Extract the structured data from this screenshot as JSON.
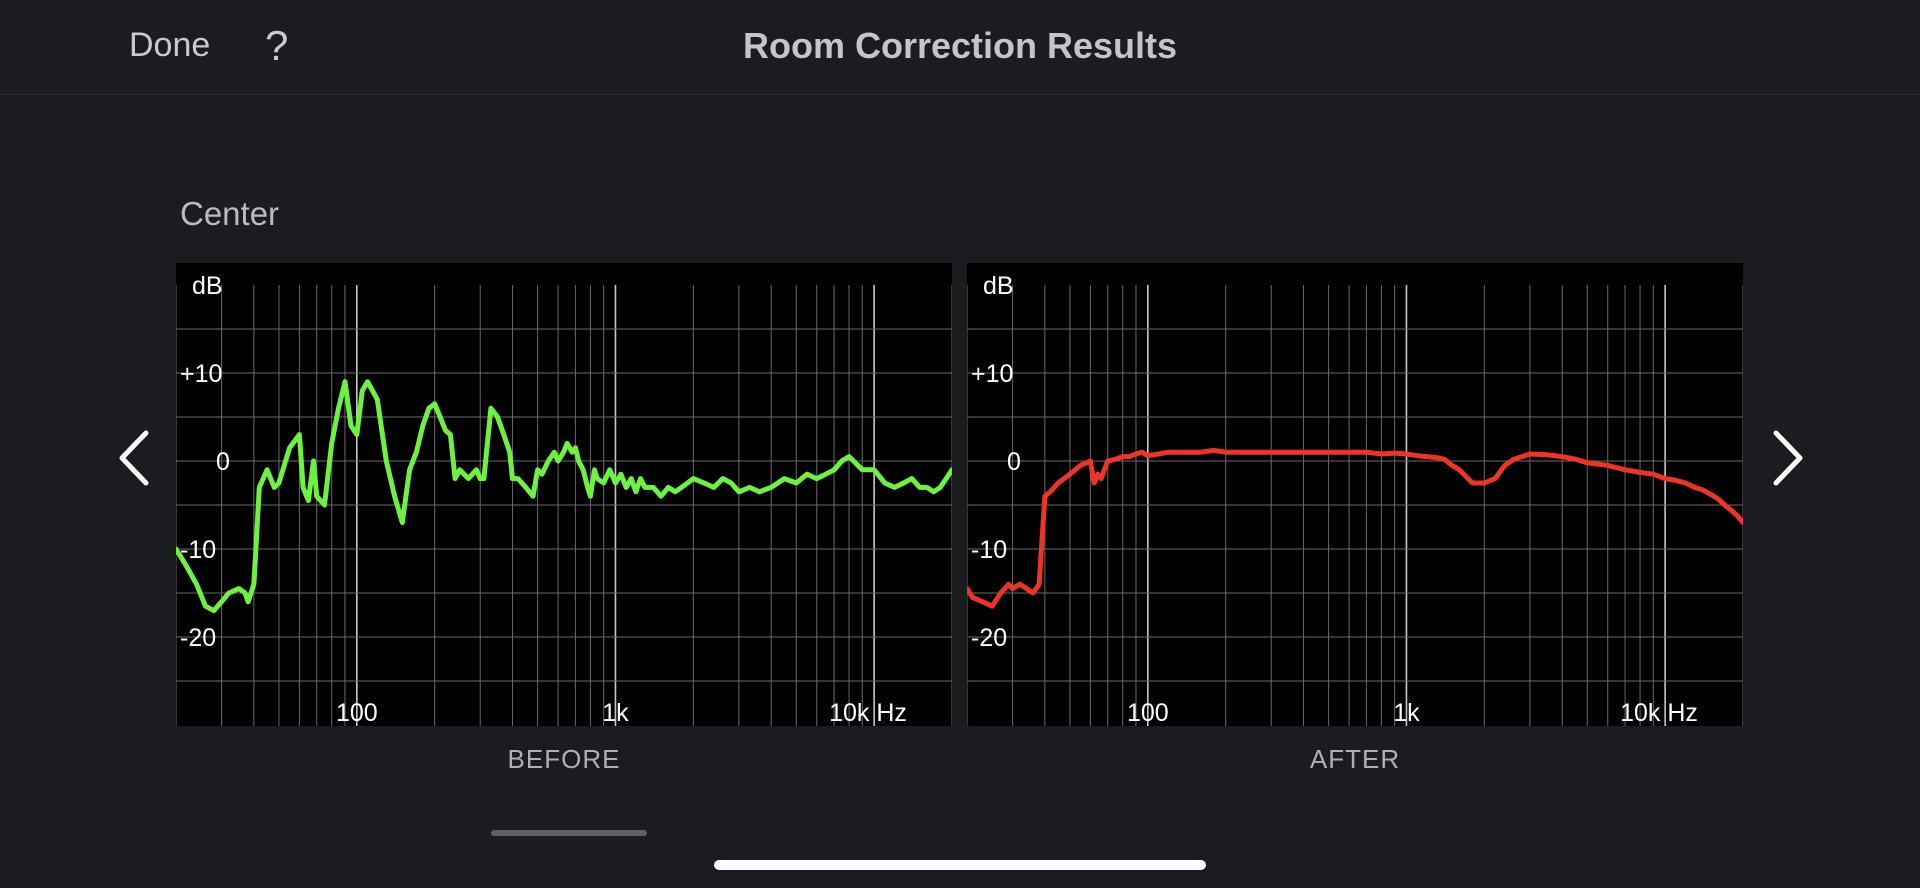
{
  "header": {
    "done_label": "Done",
    "help_label": "?",
    "title": "Room Correction Results"
  },
  "speaker": {
    "name": "Center"
  },
  "chart_data": [
    {
      "type": "line",
      "caption": "BEFORE",
      "ylabel": "dB",
      "ylim": [
        -25,
        15
      ],
      "y_ticks": [
        {
          "v": 10,
          "label": "+10"
        },
        {
          "v": 0,
          "label": "0"
        },
        {
          "v": -10,
          "label": "-10"
        },
        {
          "v": -20,
          "label": "-20"
        }
      ],
      "x_scale": "log",
      "xlim": [
        20,
        20000
      ],
      "x_ticks": [
        {
          "v": 100,
          "label": "100"
        },
        {
          "v": 1000,
          "label": "1k"
        },
        {
          "v": 10000,
          "label": "10k Hz"
        }
      ],
      "grid": true,
      "color": "#6cf23f",
      "series": [
        {
          "x": [
            20,
            22,
            24,
            26,
            28,
            30,
            32,
            35,
            37,
            38,
            40,
            42,
            45,
            48,
            50,
            55,
            60,
            62,
            65,
            68,
            70,
            75,
            80,
            85,
            90,
            95,
            100,
            105,
            110,
            115,
            120,
            130,
            140,
            150,
            160,
            170,
            180,
            190,
            200,
            210,
            220,
            230,
            240,
            250,
            270,
            290,
            300,
            310,
            330,
            350,
            370,
            390,
            400,
            420,
            450,
            480,
            500,
            520,
            550,
            580,
            600,
            630,
            650,
            680,
            700,
            720,
            750,
            780,
            800,
            830,
            850,
            900,
            950,
            1000,
            1050,
            1100,
            1150,
            1200,
            1250,
            1300,
            1400,
            1500,
            1600,
            1700,
            1800,
            1900,
            2000,
            2200,
            2400,
            2600,
            2800,
            3000,
            3300,
            3600,
            4000,
            4500,
            5000,
            5500,
            6000,
            6500,
            7000,
            7500,
            8000,
            9000,
            10000,
            11000,
            12000,
            13000,
            14000,
            15000,
            16000,
            17000,
            18000,
            19000,
            20000
          ],
          "y": [
            -10,
            -12,
            -14,
            -16.5,
            -17,
            -16,
            -15,
            -14.5,
            -15,
            -16,
            -14,
            -3,
            -1,
            -3,
            -2.5,
            1.5,
            3,
            -3,
            -4.5,
            0,
            -4,
            -5,
            2,
            6,
            9,
            4,
            3,
            8,
            9,
            8,
            7,
            0,
            -4,
            -7,
            -1,
            1,
            4,
            6,
            6.5,
            5,
            3.5,
            3,
            -2,
            -1,
            -2,
            -1,
            -2,
            -2,
            6,
            5,
            3,
            1,
            -2,
            -2,
            -3,
            -4,
            -1,
            -1.5,
            0,
            1,
            0,
            1,
            2,
            1,
            1.5,
            0,
            -1,
            -3,
            -4,
            -1,
            -2,
            -2.5,
            -1,
            -2.5,
            -1.5,
            -3,
            -2,
            -3.5,
            -2,
            -3,
            -3,
            -4,
            -3,
            -3.5,
            -3,
            -2.5,
            -2,
            -2.5,
            -3,
            -2,
            -2.5,
            -3.5,
            -3,
            -3.5,
            -3,
            -2,
            -2.5,
            -1.5,
            -2,
            -1.5,
            -1,
            0,
            0.5,
            -1,
            -1,
            -2.5,
            -3,
            -2.5,
            -2,
            -3,
            -3,
            -3.5,
            -3,
            -2,
            -1
          ]
        }
      ]
    },
    {
      "type": "line",
      "caption": "AFTER",
      "ylabel": "dB",
      "ylim": [
        -25,
        15
      ],
      "y_ticks": [
        {
          "v": 10,
          "label": "+10"
        },
        {
          "v": 0,
          "label": "0"
        },
        {
          "v": -10,
          "label": "-10"
        },
        {
          "v": -20,
          "label": "-20"
        }
      ],
      "x_scale": "log",
      "xlim": [
        20,
        20000
      ],
      "x_ticks": [
        {
          "v": 100,
          "label": "100"
        },
        {
          "v": 1000,
          "label": "1k"
        },
        {
          "v": 10000,
          "label": "10k Hz"
        }
      ],
      "grid": true,
      "color": "#ee3426",
      "series": [
        {
          "x": [
            20,
            21,
            23,
            25,
            27,
            29,
            30,
            32,
            34,
            36,
            38,
            40,
            42,
            45,
            50,
            55,
            60,
            62,
            64,
            66,
            70,
            75,
            80,
            85,
            90,
            95,
            100,
            110,
            120,
            140,
            160,
            180,
            200,
            250,
            300,
            400,
            500,
            600,
            700,
            800,
            900,
            1000,
            1100,
            1200,
            1300,
            1400,
            1500,
            1600,
            1800,
            2000,
            2200,
            2400,
            2600,
            2800,
            3000,
            3500,
            4000,
            4500,
            5000,
            6000,
            7000,
            8000,
            9000,
            10000,
            11000,
            12000,
            13000,
            14000,
            15000,
            16000,
            17000,
            18000,
            19000,
            20000
          ],
          "y": [
            -14.5,
            -15.5,
            -16,
            -16.5,
            -15,
            -14,
            -14.5,
            -14,
            -14.5,
            -15,
            -14,
            -4,
            -3.5,
            -2.5,
            -1.5,
            -0.5,
            0,
            -2.5,
            -1.5,
            -2,
            0,
            0.2,
            0.5,
            0.5,
            0.8,
            1,
            0.6,
            0.8,
            1,
            1,
            1,
            1.2,
            1,
            1,
            1,
            1,
            1,
            1,
            1,
            0.8,
            0.9,
            0.8,
            0.6,
            0.5,
            0.4,
            0.2,
            -0.5,
            -1,
            -2.5,
            -2.5,
            -2,
            -0.5,
            0.2,
            0.5,
            0.8,
            0.7,
            0.5,
            0.2,
            -0.2,
            -0.5,
            -1,
            -1.3,
            -1.5,
            -2,
            -2.2,
            -2.5,
            -3,
            -3.3,
            -3.8,
            -4.3,
            -5,
            -5.6,
            -6.2,
            -7
          ]
        }
      ]
    }
  ]
}
